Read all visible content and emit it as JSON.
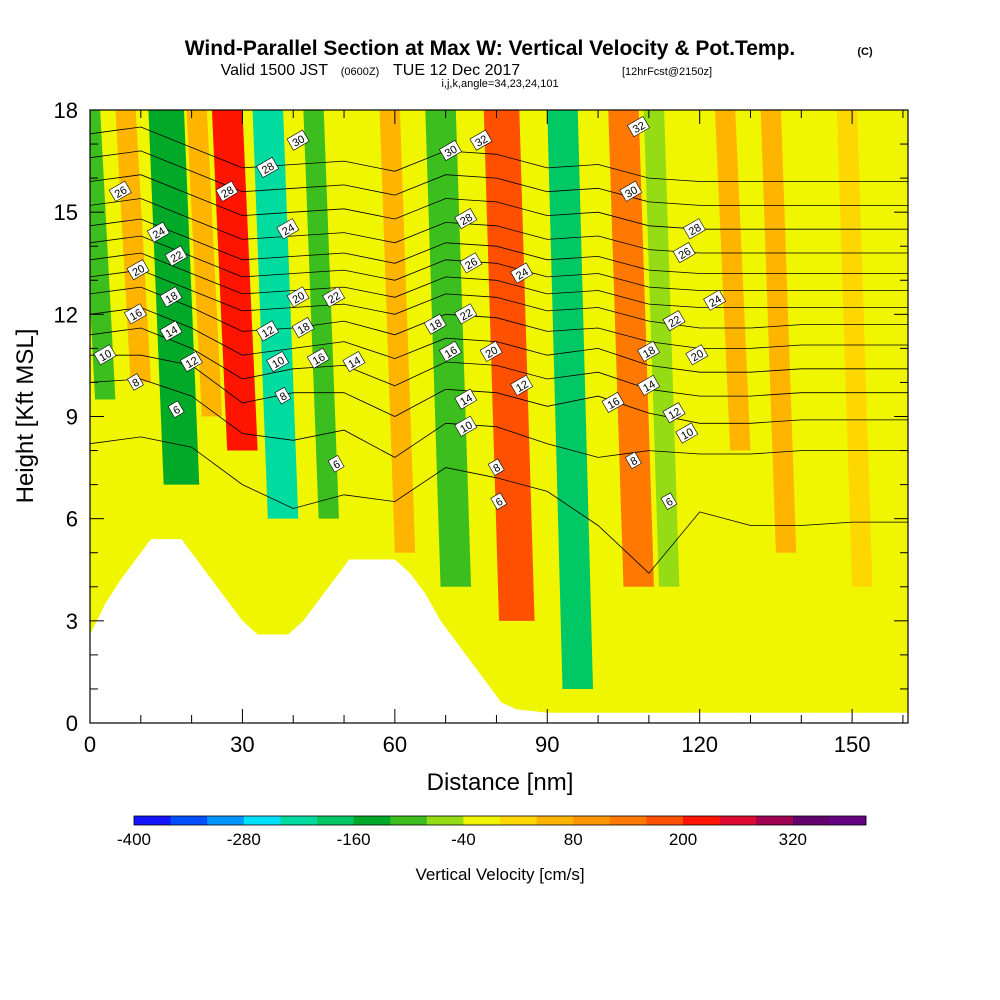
{
  "title": {
    "main": "Wind-Parallel Section at Max W: Vertical Velocity & Pot.Temp.",
    "main_mark": "(C)",
    "sub_valid": "Valid 1500 JST",
    "sub_zulu": "(0600Z)",
    "sub_date": "TUE 12 Dec 2017",
    "sub_fcst": "[12hrFcst@2150z]",
    "sub_ijk": "i,j,k,angle=34,23,24,101"
  },
  "chart_data": {
    "type": "heatmap",
    "xlabel": "Distance [nm]",
    "ylabel": "Height [Kft MSL]",
    "xlim": [
      0,
      161
    ],
    "ylim": [
      0,
      18
    ],
    "xticks": [
      0,
      30,
      60,
      90,
      120,
      150
    ],
    "yticks": [
      0,
      3,
      6,
      9,
      12,
      15,
      18
    ],
    "xtick_labels": [
      "0",
      "30",
      "60",
      "90",
      "120",
      "150"
    ],
    "ytick_labels": [
      "0",
      "3",
      "6",
      "9",
      "12",
      "15",
      "18"
    ],
    "colorbar": {
      "label": "Vertical Velocity [cm/s]",
      "units": "cm/s",
      "levels": [
        -400,
        -360,
        -320,
        -280,
        -240,
        -200,
        -160,
        -120,
        -80,
        -40,
        0,
        40,
        80,
        120,
        160,
        200,
        240,
        280,
        320,
        360
      ],
      "tick_values": [
        -400,
        -280,
        -160,
        -40,
        80,
        200,
        320
      ],
      "tick_labels": [
        "-400",
        "-280",
        "-160",
        "-40",
        "80",
        "200",
        "320"
      ],
      "colors": [
        "#1414ff",
        "#0050ff",
        "#0096ff",
        "#00e1ff",
        "#00dca0",
        "#00c864",
        "#00aa28",
        "#3cbe1e",
        "#96dc14",
        "#f0f500",
        "#ffd700",
        "#ffb400",
        "#ff9600",
        "#ff7800",
        "#ff5000",
        "#ff1400",
        "#dc0a32",
        "#a00050",
        "#64006e",
        "#640082"
      ]
    },
    "vertical_velocity_bands": [
      {
        "x": 3,
        "w": 2,
        "h0": 9.5,
        "h1": 18,
        "value": -100
      },
      {
        "x": 10,
        "w": 2,
        "h0": 10,
        "h1": 18,
        "value": 40
      },
      {
        "x": 18,
        "w": 3.5,
        "h0": 7,
        "h1": 18,
        "value": -130
      },
      {
        "x": 24,
        "w": 2,
        "h0": 9,
        "h1": 18,
        "value": 60
      },
      {
        "x": 30,
        "w": 3,
        "h0": 8,
        "h1": 18,
        "value": 220
      },
      {
        "x": 38,
        "w": 3,
        "h0": 6,
        "h1": 18,
        "value": -240
      },
      {
        "x": 47,
        "w": 2,
        "h0": 6,
        "h1": 18,
        "value": -90
      },
      {
        "x": 62,
        "w": 2,
        "h0": 5,
        "h1": 18,
        "value": 50
      },
      {
        "x": 72,
        "w": 3,
        "h0": 4,
        "h1": 18,
        "value": -120
      },
      {
        "x": 84,
        "w": 3.5,
        "h0": 3,
        "h1": 18,
        "value": 180
      },
      {
        "x": 96,
        "w": 3,
        "h0": 1,
        "h1": 18,
        "value": -200
      },
      {
        "x": 108,
        "w": 3,
        "h0": 4,
        "h1": 18,
        "value": 120
      },
      {
        "x": 114,
        "w": 2,
        "h0": 4,
        "h1": 18,
        "value": -70
      },
      {
        "x": 128,
        "w": 2,
        "h0": 8,
        "h1": 18,
        "value": 40
      },
      {
        "x": 137,
        "w": 2,
        "h0": 5,
        "h1": 18,
        "value": 60
      },
      {
        "x": 152,
        "w": 2,
        "h0": 4,
        "h1": 18,
        "value": 30
      }
    ],
    "terrain": [
      [
        0,
        2.6
      ],
      [
        3,
        3.5
      ],
      [
        6,
        4.2
      ],
      [
        9,
        4.8
      ],
      [
        12,
        5.4
      ],
      [
        18,
        5.4
      ],
      [
        21,
        4.8
      ],
      [
        24,
        4.2
      ],
      [
        27,
        3.6
      ],
      [
        30,
        3.0
      ],
      [
        33,
        2.6
      ],
      [
        39,
        2.6
      ],
      [
        42,
        3.0
      ],
      [
        45,
        3.6
      ],
      [
        48,
        4.2
      ],
      [
        51,
        4.8
      ],
      [
        54,
        4.8
      ],
      [
        60,
        4.8
      ],
      [
        63,
        4.4
      ],
      [
        66,
        3.8
      ],
      [
        69,
        3.0
      ],
      [
        72,
        2.4
      ],
      [
        75,
        1.8
      ],
      [
        78,
        1.2
      ],
      [
        81,
        0.6
      ],
      [
        84,
        0.4
      ],
      [
        90,
        0.3
      ],
      [
        161,
        0.3
      ]
    ],
    "potential_temperature_contours": [
      {
        "value": 6,
        "heights": [
          8.2,
          8.4,
          8.1,
          7.0,
          6.3,
          6.7,
          6.5,
          7.5,
          7.2,
          6.8,
          5.8,
          4.4,
          6.2,
          5.8,
          5.8,
          5.9,
          5.9
        ]
      },
      {
        "value": 8,
        "heights": [
          10.0,
          10.1,
          9.6,
          8.5,
          8.3,
          8.6,
          7.8,
          8.8,
          8.7,
          8.2,
          7.8,
          8.0,
          7.9,
          7.9,
          8.0,
          8.0,
          8.0
        ]
      },
      {
        "value": 10,
        "heights": [
          10.8,
          10.8,
          10.5,
          9.4,
          9.7,
          9.7,
          9.0,
          9.8,
          9.7,
          9.3,
          9.6,
          9.1,
          8.8,
          8.8,
          8.9,
          8.9,
          8.9
        ]
      },
      {
        "value": 12,
        "heights": [
          11.4,
          11.6,
          11.0,
          10.1,
          10.4,
          10.5,
          9.9,
          10.6,
          10.5,
          10.1,
          10.3,
          9.8,
          9.6,
          9.6,
          9.7,
          9.7,
          9.7
        ]
      },
      {
        "value": 14,
        "heights": [
          12.0,
          12.2,
          11.6,
          10.8,
          11.0,
          11.2,
          10.7,
          11.3,
          11.2,
          10.8,
          11.0,
          10.5,
          10.3,
          10.3,
          10.4,
          10.4,
          10.4
        ]
      },
      {
        "value": 16,
        "heights": [
          12.6,
          12.8,
          12.2,
          11.5,
          11.6,
          11.8,
          11.4,
          12.0,
          11.9,
          11.5,
          11.6,
          11.2,
          11.0,
          11.0,
          11.1,
          11.1,
          11.1
        ]
      },
      {
        "value": 18,
        "heights": [
          13.1,
          13.3,
          12.7,
          12.1,
          12.2,
          12.3,
          12.0,
          12.6,
          12.5,
          12.1,
          12.2,
          11.8,
          11.6,
          11.6,
          11.7,
          11.7,
          11.7
        ]
      },
      {
        "value": 20,
        "heights": [
          13.6,
          13.8,
          13.2,
          12.6,
          12.7,
          12.8,
          12.5,
          13.1,
          13.0,
          12.6,
          12.7,
          12.3,
          12.2,
          12.2,
          12.2,
          12.2,
          12.2
        ]
      },
      {
        "value": 22,
        "heights": [
          14.1,
          14.3,
          13.7,
          13.1,
          13.2,
          13.3,
          13.0,
          13.6,
          13.5,
          13.1,
          13.2,
          12.8,
          12.7,
          12.7,
          12.7,
          12.7,
          12.7
        ]
      },
      {
        "value": 24,
        "heights": [
          14.6,
          14.8,
          14.2,
          13.6,
          13.7,
          13.8,
          13.5,
          14.1,
          14.0,
          13.6,
          13.7,
          13.3,
          13.2,
          13.2,
          13.2,
          13.2,
          13.2
        ]
      },
      {
        "value": 26,
        "heights": [
          15.2,
          15.4,
          14.8,
          14.2,
          14.3,
          14.4,
          14.1,
          14.7,
          14.6,
          14.2,
          14.3,
          13.9,
          13.8,
          13.8,
          13.8,
          13.8,
          13.8
        ]
      },
      {
        "value": 28,
        "heights": [
          15.9,
          16.1,
          15.5,
          14.9,
          15.0,
          15.1,
          14.8,
          15.4,
          15.3,
          14.9,
          15.0,
          14.6,
          14.5,
          14.5,
          14.5,
          14.5,
          14.5
        ]
      },
      {
        "value": 30,
        "heights": [
          16.6,
          16.8,
          16.2,
          15.6,
          15.7,
          15.8,
          15.5,
          16.1,
          16.0,
          15.6,
          15.7,
          15.3,
          15.2,
          15.2,
          15.2,
          15.2,
          15.2
        ]
      },
      {
        "value": 32,
        "heights": [
          17.3,
          17.5,
          16.9,
          16.3,
          16.4,
          16.5,
          16.2,
          16.8,
          16.7,
          16.3,
          16.4,
          16.0,
          15.9,
          15.9,
          15.9,
          15.9,
          15.9
        ]
      }
    ],
    "contour_x": [
      0,
      10,
      20,
      30,
      40,
      50,
      60,
      70,
      80,
      90,
      100,
      110,
      120,
      130,
      140,
      150,
      161
    ],
    "contour_labels": [
      {
        "text": "26",
        "x": 6,
        "y": 15.6
      },
      {
        "text": "24",
        "x": 13.5,
        "y": 14.4
      },
      {
        "text": "22",
        "x": 17,
        "y": 13.7
      },
      {
        "text": "20",
        "x": 9.5,
        "y": 13.3
      },
      {
        "text": "18",
        "x": 16,
        "y": 12.5
      },
      {
        "text": "16",
        "x": 9,
        "y": 12.0
      },
      {
        "text": "14",
        "x": 16,
        "y": 11.5
      },
      {
        "text": "12",
        "x": 20,
        "y": 10.6
      },
      {
        "text": "10",
        "x": 3,
        "y": 10.8
      },
      {
        "text": "8",
        "x": 9,
        "y": 10.0
      },
      {
        "text": "6",
        "x": 17,
        "y": 9.2
      },
      {
        "text": "28",
        "x": 27,
        "y": 15.6
      },
      {
        "text": "28",
        "x": 35,
        "y": 16.3
      },
      {
        "text": "30",
        "x": 41,
        "y": 17.1
      },
      {
        "text": "24",
        "x": 39,
        "y": 14.5
      },
      {
        "text": "20",
        "x": 41,
        "y": 12.5
      },
      {
        "text": "22",
        "x": 48,
        "y": 12.5
      },
      {
        "text": "18",
        "x": 42,
        "y": 11.6
      },
      {
        "text": "12",
        "x": 35,
        "y": 11.5
      },
      {
        "text": "16",
        "x": 45,
        "y": 10.7
      },
      {
        "text": "14",
        "x": 52,
        "y": 10.6
      },
      {
        "text": "10",
        "x": 37,
        "y": 10.6
      },
      {
        "text": "8",
        "x": 38,
        "y": 9.6
      },
      {
        "text": "6",
        "x": 48.5,
        "y": 7.6
      },
      {
        "text": "30",
        "x": 71,
        "y": 16.8
      },
      {
        "text": "32",
        "x": 77,
        "y": 17.1
      },
      {
        "text": "28",
        "x": 74,
        "y": 14.8
      },
      {
        "text": "26",
        "x": 75,
        "y": 13.5
      },
      {
        "text": "24",
        "x": 85,
        "y": 13.2
      },
      {
        "text": "22",
        "x": 74,
        "y": 12.0
      },
      {
        "text": "18",
        "x": 68,
        "y": 11.7
      },
      {
        "text": "16",
        "x": 71,
        "y": 10.9
      },
      {
        "text": "20",
        "x": 79,
        "y": 10.9
      },
      {
        "text": "14",
        "x": 74,
        "y": 9.5
      },
      {
        "text": "12",
        "x": 85,
        "y": 9.9
      },
      {
        "text": "10",
        "x": 74,
        "y": 8.7
      },
      {
        "text": "8",
        "x": 80,
        "y": 7.5
      },
      {
        "text": "6",
        "x": 80.5,
        "y": 6.5
      },
      {
        "text": "32",
        "x": 108,
        "y": 17.5
      },
      {
        "text": "30",
        "x": 106.5,
        "y": 15.6
      },
      {
        "text": "28",
        "x": 119,
        "y": 14.5
      },
      {
        "text": "26",
        "x": 117,
        "y": 13.8
      },
      {
        "text": "24",
        "x": 123,
        "y": 12.4
      },
      {
        "text": "22",
        "x": 115,
        "y": 11.8
      },
      {
        "text": "20",
        "x": 119.5,
        "y": 10.8
      },
      {
        "text": "18",
        "x": 110,
        "y": 10.9
      },
      {
        "text": "16",
        "x": 103,
        "y": 9.4
      },
      {
        "text": "14",
        "x": 110,
        "y": 9.9
      },
      {
        "text": "12",
        "x": 115,
        "y": 9.1
      },
      {
        "text": "10",
        "x": 117.5,
        "y": 8.5
      },
      {
        "text": "8",
        "x": 107,
        "y": 7.7
      },
      {
        "text": "6",
        "x": 114,
        "y": 6.5
      }
    ]
  }
}
